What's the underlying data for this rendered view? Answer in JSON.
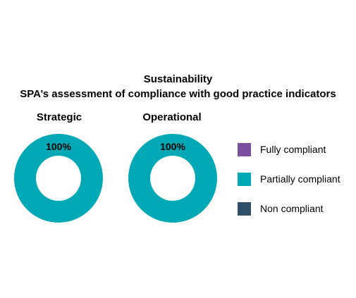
{
  "chart_data": {
    "type": "pie",
    "title": "Sustainability",
    "subtitle": "SPA’s assessment of compliance with good practice indicators",
    "categories": [
      "Fully compliant",
      "Partially compliant",
      "Non compliant"
    ],
    "colors": [
      "#7b4fa0",
      "#00a9b5",
      "#2f5068"
    ],
    "charts": [
      {
        "name": "Strategic",
        "values": [
          0,
          100,
          0
        ],
        "data_labels": [
          "",
          "100%",
          ""
        ]
      },
      {
        "name": "Operational",
        "values": [
          0,
          100,
          0
        ],
        "data_labels": [
          "",
          "100%",
          ""
        ]
      }
    ],
    "legend": "right"
  }
}
